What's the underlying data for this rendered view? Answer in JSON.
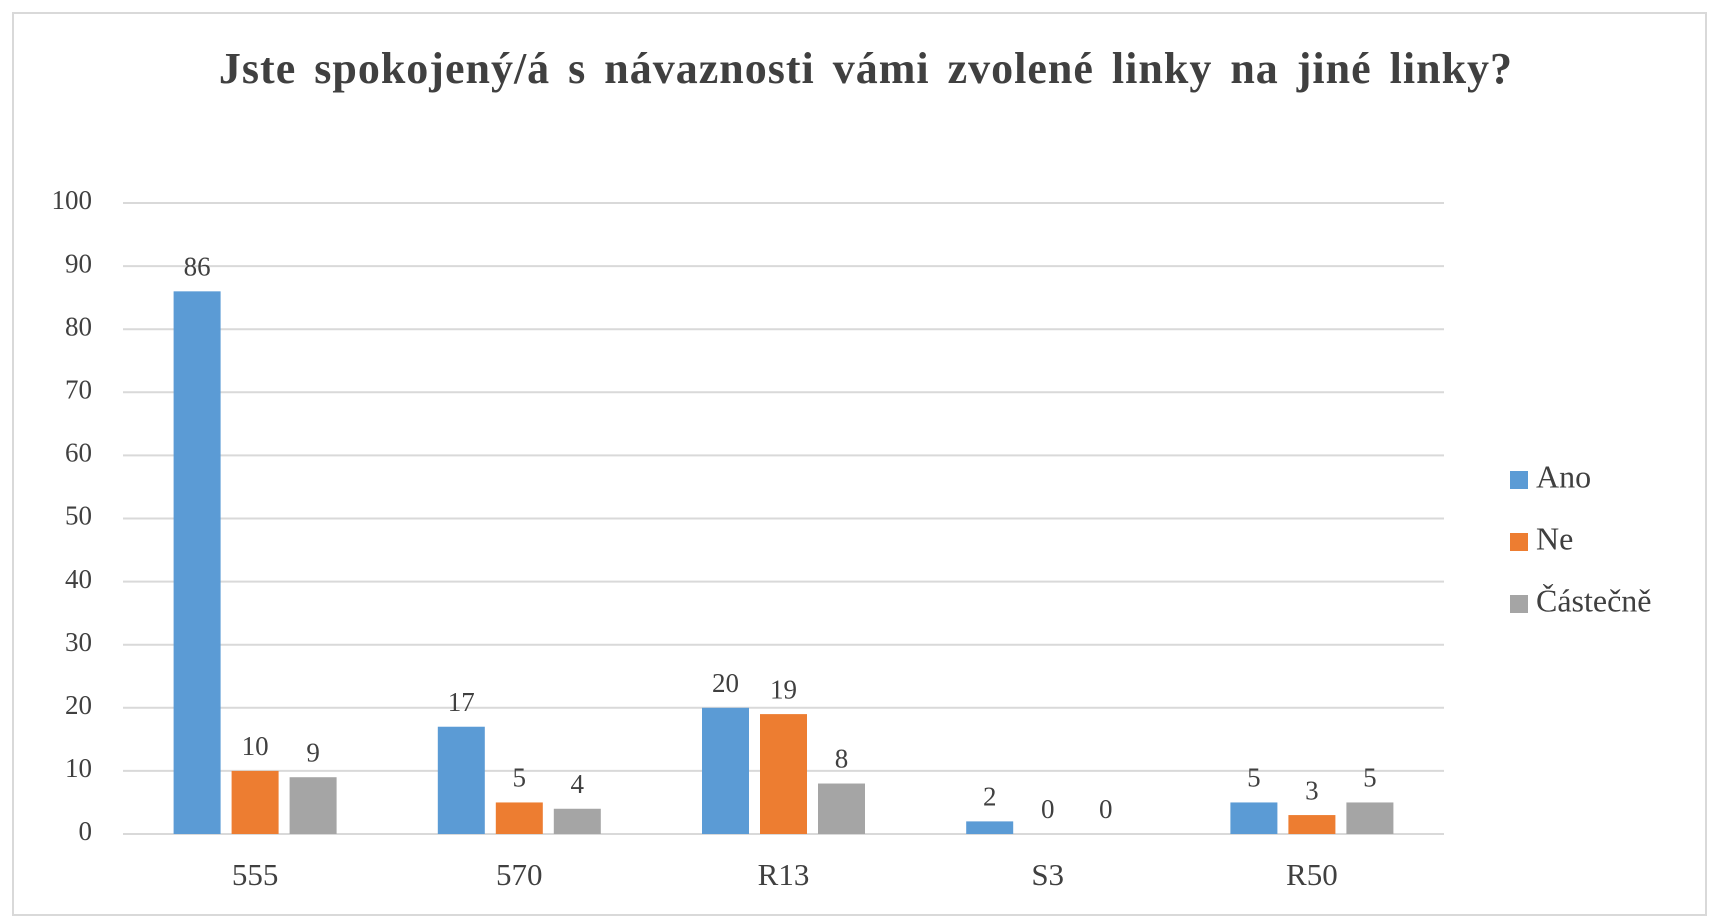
{
  "chart_data": {
    "type": "bar",
    "title": "Jste spokojený/á s návaznosti vámi zvolené linky na jiné linky?",
    "categories": [
      "555",
      "570",
      "R13",
      "S3",
      "R50"
    ],
    "series": [
      {
        "name": "Ano",
        "color": "#5b9bd5",
        "values": [
          86,
          17,
          20,
          2,
          5
        ]
      },
      {
        "name": "Ne",
        "color": "#ed7d31",
        "values": [
          10,
          5,
          19,
          0,
          3
        ]
      },
      {
        "name": "Částečně",
        "color": "#a5a5a5",
        "values": [
          9,
          4,
          8,
          0,
          5
        ]
      }
    ],
    "ylim": [
      0,
      100
    ],
    "yticks": [
      0,
      10,
      20,
      30,
      40,
      50,
      60,
      70,
      80,
      90,
      100
    ],
    "grid": true,
    "legend": "right"
  }
}
